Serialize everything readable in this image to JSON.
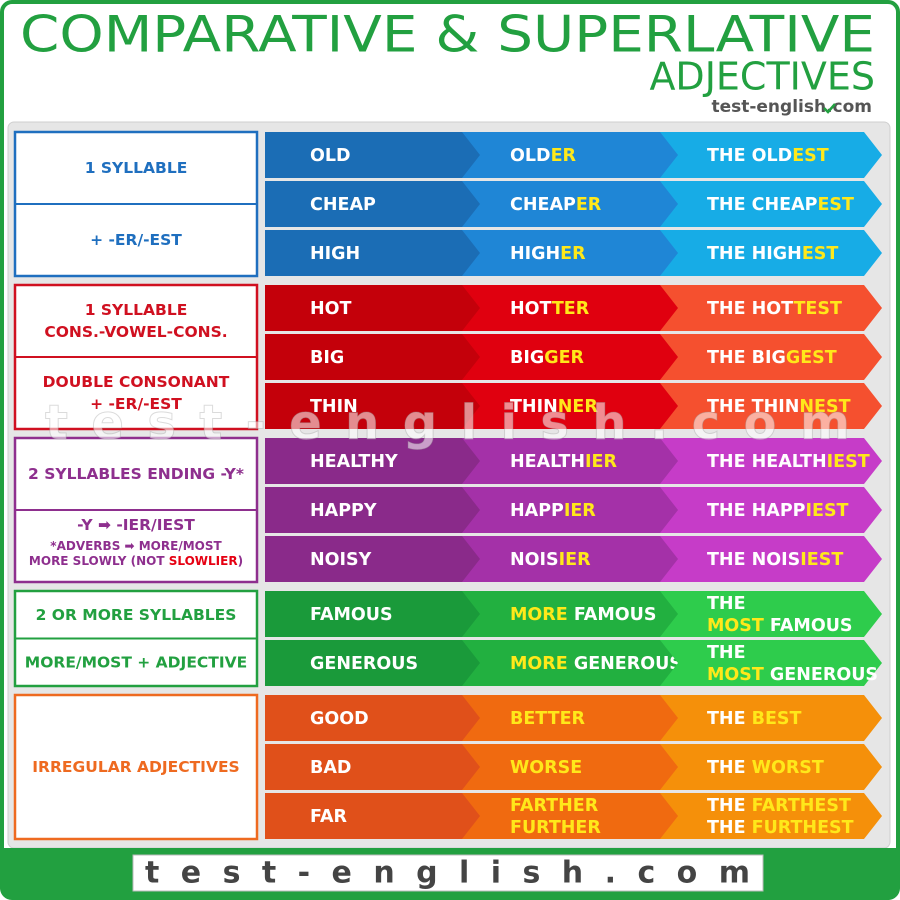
{
  "header": {
    "title": "COMPARATIVE & SUPERLATIVE",
    "subtitle": "ADJECTIVES",
    "logo": "test-english.com"
  },
  "cell_accent": "#ffe81a",
  "rule_accent": "#e60012",
  "groups": [
    {
      "border": "#1f6fbf",
      "colors": [
        "#1b6db5",
        "#1f86d6",
        "#17ace6"
      ],
      "rules": [
        [
          [
            "1 SYLLABLE"
          ]
        ],
        [
          [
            "+ -ER/-EST"
          ]
        ]
      ],
      "rows": [
        [
          [
            [
              "OLD"
            ]
          ],
          [
            [
              "OLD",
              {
                "accent": "ER"
              }
            ]
          ],
          [
            [
              "THE OLD",
              {
                "accent": "EST"
              }
            ]
          ]
        ],
        [
          [
            [
              "CHEAP"
            ]
          ],
          [
            [
              "CHEAP",
              {
                "accent": "ER"
              }
            ]
          ],
          [
            [
              "THE CHEAP",
              {
                "accent": "EST"
              }
            ]
          ]
        ],
        [
          [
            [
              "HIGH"
            ]
          ],
          [
            [
              "HIGH",
              {
                "accent": "ER"
              }
            ]
          ],
          [
            [
              "THE HIGH",
              {
                "accent": "EST"
              }
            ]
          ]
        ]
      ]
    },
    {
      "border": "#d01020",
      "colors": [
        "#c4000a",
        "#e0000f",
        "#f5502f"
      ],
      "rules": [
        [
          [
            "1 SYLLABLE"
          ],
          [
            "CONS.-VOWEL-CONS."
          ]
        ],
        [
          [
            "DOUBLE CONSONANT"
          ],
          [
            "+ -ER/-EST"
          ]
        ]
      ],
      "rows": [
        [
          [
            [
              "HOT"
            ]
          ],
          [
            [
              "HOT",
              {
                "accent": "TER"
              }
            ]
          ],
          [
            [
              "THE HOT",
              {
                "accent": "TEST"
              }
            ]
          ]
        ],
        [
          [
            [
              "BIG"
            ]
          ],
          [
            [
              "BIG",
              {
                "accent": "GER"
              }
            ]
          ],
          [
            [
              "THE BIG",
              {
                "accent": "GEST"
              }
            ]
          ]
        ],
        [
          [
            [
              "THIN"
            ]
          ],
          [
            [
              "THIN",
              {
                "accent": "NER"
              }
            ]
          ],
          [
            [
              "THE THIN",
              {
                "accent": "NEST"
              }
            ]
          ]
        ]
      ]
    },
    {
      "border": "#8e2f8e",
      "colors": [
        "#8a2a8a",
        "#a431a8",
        "#c63cc8"
      ],
      "rules": [
        [
          [
            "2 SYLLABLES ENDING -Y*"
          ]
        ],
        [
          [
            "-Y ➡ -IER/IEST"
          ],
          [
            "*ADVERBS ➡ MORE/MOST"
          ],
          [
            "MORE SLOWLY (NOT ",
            {
              "accent": "SLOWLIER"
            },
            ")"
          ]
        ]
      ],
      "rows": [
        [
          [
            [
              "HEALTHY"
            ]
          ],
          [
            [
              "HEALTH",
              {
                "accent": "IER"
              }
            ]
          ],
          [
            [
              "THE HEALTH",
              {
                "accent": "IEST"
              }
            ]
          ]
        ],
        [
          [
            [
              "HAPPY"
            ]
          ],
          [
            [
              "HAPP",
              {
                "accent": "IER"
              }
            ]
          ],
          [
            [
              "THE HAPP",
              {
                "accent": "IEST"
              }
            ]
          ]
        ],
        [
          [
            [
              "NOISY"
            ]
          ],
          [
            [
              "NOIS",
              {
                "accent": "IER"
              }
            ]
          ],
          [
            [
              "THE NOIS",
              {
                "accent": "IEST"
              }
            ]
          ]
        ]
      ]
    },
    {
      "border": "#22a040",
      "colors": [
        "#1a9a3a",
        "#22b040",
        "#2ecc4c"
      ],
      "rules": [
        [
          [
            "2 OR MORE SYLLABLES"
          ]
        ],
        [
          [
            "MORE/MOST + ADJECTIVE"
          ]
        ]
      ],
      "rows": [
        [
          [
            [
              "FAMOUS"
            ]
          ],
          [
            [
              {
                "accent": "MORE"
              },
              " FAMOUS"
            ]
          ],
          [
            [
              "THE"
            ],
            [
              {
                "accent": "MOST"
              },
              " FAMOUS"
            ]
          ]
        ],
        [
          [
            [
              "GENEROUS"
            ]
          ],
          [
            [
              {
                "accent": "MORE"
              },
              " GENEROUS"
            ]
          ],
          [
            [
              "THE"
            ],
            [
              {
                "accent": "MOST"
              },
              " GENEROUS"
            ]
          ]
        ]
      ]
    },
    {
      "border": "#ee6a20",
      "colors": [
        "#e0501a",
        "#f06a10",
        "#f5900a"
      ],
      "rules": [
        [
          [
            "IRREGULAR ADJECTIVES"
          ]
        ]
      ],
      "rows": [
        [
          [
            [
              "GOOD"
            ]
          ],
          [
            [
              {
                "accent": "BETTER"
              }
            ]
          ],
          [
            [
              "THE ",
              {
                "accent": "BEST"
              }
            ]
          ]
        ],
        [
          [
            [
              "BAD"
            ]
          ],
          [
            [
              {
                "accent": "WORSE"
              }
            ]
          ],
          [
            [
              "THE ",
              {
                "accent": "WORST"
              }
            ]
          ]
        ],
        [
          [
            [
              "FAR"
            ]
          ],
          [
            [
              {
                "accent": "FARTHER"
              }
            ],
            [
              {
                "accent": "FURTHER"
              }
            ]
          ],
          [
            [
              "THE ",
              {
                "accent": "FARTHEST"
              }
            ],
            [
              "THE ",
              {
                "accent": "FURTHEST"
              }
            ]
          ]
        ]
      ]
    }
  ],
  "watermark": "test-english.com",
  "footer": "test-english.com"
}
